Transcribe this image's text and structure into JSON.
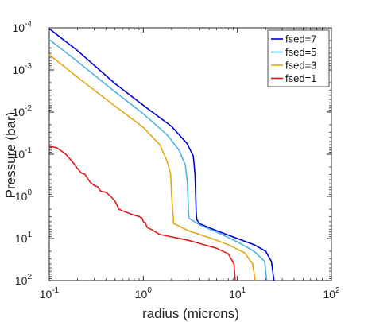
{
  "chart_data": {
    "type": "line",
    "title": "",
    "xlabel": "radius (microns)",
    "ylabel": "Pressure (bar)",
    "xscale": "log",
    "yscale": "log",
    "y_reversed": true,
    "xlim": [
      0.1,
      100
    ],
    "ylim": [
      0.0001,
      100
    ],
    "x_ticks": [
      {
        "value": 0.1,
        "base": "10",
        "exp": "-1"
      },
      {
        "value": 1,
        "base": "10",
        "exp": "0"
      },
      {
        "value": 10,
        "base": "10",
        "exp": "1"
      },
      {
        "value": 100,
        "base": "10",
        "exp": "2"
      }
    ],
    "y_ticks": [
      {
        "value": 0.0001,
        "base": "10",
        "exp": "-4"
      },
      {
        "value": 0.001,
        "base": "10",
        "exp": "-3"
      },
      {
        "value": 0.01,
        "base": "10",
        "exp": "-2"
      },
      {
        "value": 0.1,
        "base": "10",
        "exp": "-1"
      },
      {
        "value": 1,
        "base": "10",
        "exp": "0"
      },
      {
        "value": 10,
        "base": "10",
        "exp": "1"
      },
      {
        "value": 100,
        "base": "10",
        "exp": "2"
      }
    ],
    "grid": false,
    "legend_position": "top-right",
    "series": [
      {
        "name": "fsed=7",
        "color": "#0000d6",
        "points": [
          [
            0.1,
            0.000105
          ],
          [
            0.2,
            0.00035
          ],
          [
            0.5,
            0.0021
          ],
          [
            1,
            0.0069
          ],
          [
            2,
            0.022
          ],
          [
            2.9,
            0.055
          ],
          [
            3.4,
            0.11
          ],
          [
            3.55,
            0.3
          ],
          [
            3.6,
            1
          ],
          [
            3.65,
            2.5
          ],
          [
            3.7,
            3.6
          ],
          [
            4,
            4.5
          ],
          [
            6,
            6.5
          ],
          [
            10,
            10
          ],
          [
            15,
            14
          ],
          [
            20,
            20
          ],
          [
            23,
            35
          ],
          [
            24.5,
            100
          ]
        ]
      },
      {
        "name": "fsed=5",
        "color": "#4db3e6",
        "points": [
          [
            0.1,
            0.00019
          ],
          [
            0.2,
            0.00063
          ],
          [
            0.5,
            0.0033
          ],
          [
            1,
            0.011
          ],
          [
            1.8,
            0.035
          ],
          [
            2.4,
            0.08
          ],
          [
            2.8,
            0.18
          ],
          [
            2.95,
            0.5
          ],
          [
            3.0,
            1.5
          ],
          [
            3.05,
            3.3
          ],
          [
            4,
            4.8
          ],
          [
            6,
            7
          ],
          [
            10,
            12
          ],
          [
            15,
            20
          ],
          [
            19.5,
            35
          ],
          [
            20.5,
            100
          ]
        ]
      },
      {
        "name": "fsed=3",
        "color": "#e6a817",
        "points": [
          [
            0.1,
            0.00043
          ],
          [
            0.2,
            0.0015
          ],
          [
            0.5,
            0.0072
          ],
          [
            1,
            0.023
          ],
          [
            1.5,
            0.06
          ],
          [
            1.8,
            0.15
          ],
          [
            1.95,
            0.3
          ],
          [
            2.0,
            1
          ],
          [
            2.05,
            2
          ],
          [
            2.1,
            4.4
          ],
          [
            3,
            6.5
          ],
          [
            5,
            9.5
          ],
          [
            8,
            14
          ],
          [
            12,
            22
          ],
          [
            14.5,
            40
          ],
          [
            15.5,
            100
          ]
        ]
      },
      {
        "name": "fsed=1",
        "color": "#e21b1b",
        "points": [
          [
            0.1,
            0.065
          ],
          [
            0.12,
            0.07
          ],
          [
            0.15,
            0.1
          ],
          [
            0.18,
            0.16
          ],
          [
            0.2,
            0.22
          ],
          [
            0.22,
            0.28
          ],
          [
            0.24,
            0.3
          ],
          [
            0.27,
            0.45
          ],
          [
            0.3,
            0.55
          ],
          [
            0.33,
            0.6
          ],
          [
            0.35,
            0.75
          ],
          [
            0.4,
            0.8
          ],
          [
            0.45,
            1.0
          ],
          [
            0.5,
            1.3
          ],
          [
            0.55,
            2.0
          ],
          [
            0.6,
            2.2
          ],
          [
            0.7,
            2.5
          ],
          [
            0.8,
            2.8
          ],
          [
            0.9,
            3.0
          ],
          [
            0.97,
            3.3
          ],
          [
            1.0,
            4.0
          ],
          [
            1.05,
            4.2
          ],
          [
            1.1,
            5.5
          ],
          [
            1.2,
            6
          ],
          [
            1.5,
            8
          ],
          [
            3,
            11
          ],
          [
            6,
            17
          ],
          [
            8,
            23
          ],
          [
            9.2,
            40
          ],
          [
            9.5,
            100
          ]
        ]
      }
    ]
  }
}
